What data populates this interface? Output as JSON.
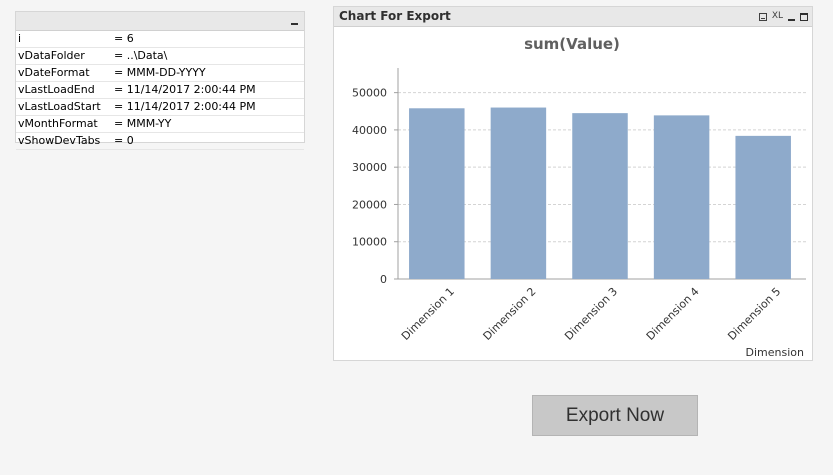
{
  "variables": [
    {
      "name": "i",
      "value": "= 6"
    },
    {
      "name": "vDataFolder",
      "value": "= ..\\Data\\"
    },
    {
      "name": "vDateFormat",
      "value": "= MMM-DD-YYYY"
    },
    {
      "name": "vLastLoadEnd",
      "value": "= 11/14/2017 2:00:44 PM"
    },
    {
      "name": "vLastLoadStart",
      "value": "= 11/14/2017 2:00:44 PM"
    },
    {
      "name": "vMonthFormat",
      "value": "= MMM-YY"
    },
    {
      "name": "vShowDevTabs",
      "value": "= 0"
    }
  ],
  "chart_box": {
    "caption": "Chart For Export",
    "xl_label": "XL"
  },
  "chart_data": {
    "type": "bar",
    "title": "sum(Value)",
    "xlabel": "Dimension",
    "ylabel": "",
    "categories": [
      "Dimension 1",
      "Dimension 2",
      "Dimension 3",
      "Dimension 4",
      "Dimension 5"
    ],
    "values": [
      45800,
      46000,
      44500,
      43900,
      38400
    ],
    "ylim": [
      0,
      55000
    ],
    "yticks": [
      0,
      10000,
      20000,
      30000,
      40000,
      50000
    ],
    "grid": true,
    "bar_color": "#8eaacb"
  },
  "export_button": {
    "label": "Export Now"
  }
}
